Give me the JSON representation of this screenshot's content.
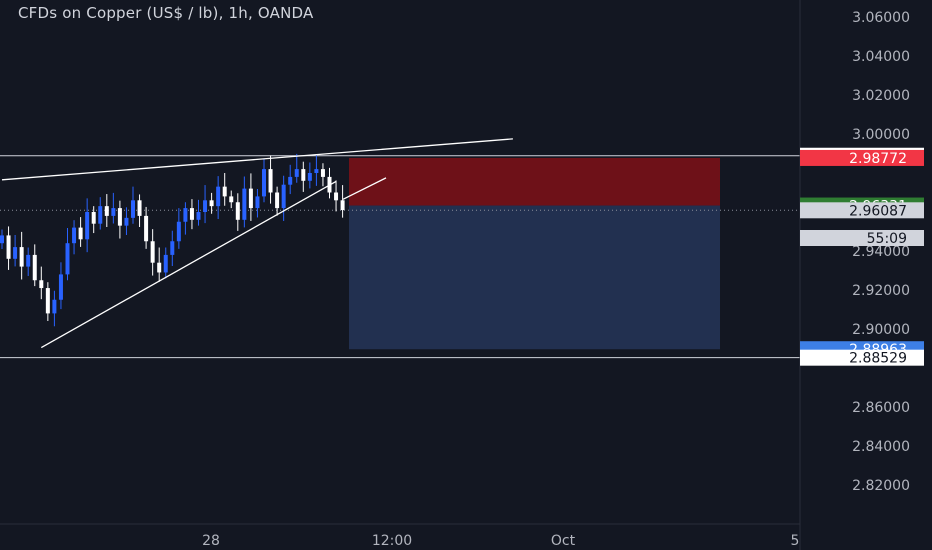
{
  "header": {
    "title": "CFDs on Copper (US$ / lb), 1h, OANDA"
  },
  "colors": {
    "background": "#131722",
    "up": "#2962ff",
    "down": "#ffffff",
    "stop_zone": "#6e1118",
    "target_zone": "#223050",
    "grid_text": "#b2b5be"
  },
  "chart_data": {
    "type": "candlestick",
    "symbol": "CFDs on Copper (US$ / lb)",
    "interval": "1h",
    "source": "OANDA",
    "ylim": [
      2.805,
      3.07
    ],
    "y_ticks": [
      "3.06000",
      "3.04000",
      "3.02000",
      "3.00000",
      "2.94000",
      "2.92000",
      "2.90000",
      "2.86000",
      "2.84000",
      "2.82000"
    ],
    "x_ticks": [
      "28",
      "12:00",
      "Oct",
      "5"
    ],
    "price_labels": [
      {
        "text": "2.98885",
        "value": 2.98885,
        "kind": "level"
      },
      {
        "text": "2.98772",
        "value": 2.98772,
        "kind": "stop"
      },
      {
        "text": "2.96331",
        "value": 2.96331,
        "kind": "entry"
      },
      {
        "text": "2.96087",
        "value": 2.96087,
        "kind": "last"
      },
      {
        "text": "55:09",
        "value": 2.95,
        "kind": "countdown"
      },
      {
        "text": "2.88963",
        "value": 2.88963,
        "kind": "target"
      },
      {
        "text": "2.88529",
        "value": 2.88529,
        "kind": "level"
      }
    ],
    "horizontal_levels": [
      2.98885,
      2.88529
    ],
    "position": {
      "type": "short",
      "entry": 2.96331,
      "stop": 2.98772,
      "target": 2.88963
    },
    "trendlines": [
      {
        "name": "upper-wedge-line",
        "points": [
          [
            0,
            2.9765
          ],
          [
            78,
            2.9975
          ]
        ]
      },
      {
        "name": "lower-wedge-line",
        "points": [
          [
            6,
            2.8905
          ],
          [
            51,
            2.9757
          ]
        ]
      }
    ],
    "closes": [
      2.948,
      2.936,
      2.942,
      2.932,
      2.938,
      2.925,
      2.921,
      2.908,
      2.915,
      2.928,
      2.944,
      2.952,
      2.946,
      2.96,
      2.954,
      2.963,
      2.958,
      2.962,
      2.953,
      2.957,
      2.966,
      2.958,
      2.945,
      2.934,
      2.929,
      2.938,
      2.945,
      2.955,
      2.962,
      2.956,
      2.96,
      2.966,
      2.963,
      2.973,
      2.968,
      2.965,
      2.956,
      2.972,
      2.962,
      2.968,
      2.982,
      2.97,
      2.962,
      2.974,
      2.978,
      2.982,
      2.976,
      2.98,
      2.982,
      2.978,
      2.97,
      2.966,
      2.961
    ]
  }
}
